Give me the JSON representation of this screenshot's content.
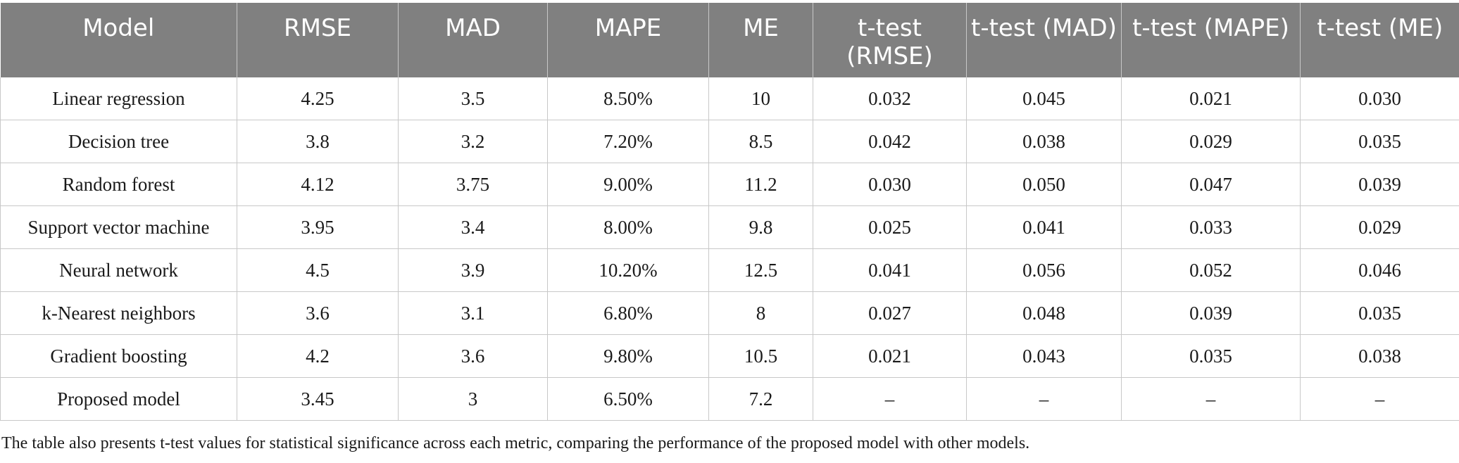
{
  "table": {
    "headers": [
      "Model",
      "RMSE",
      "MAD",
      "MAPE",
      "ME",
      "t-test (RMSE)",
      "t-test (MAD)",
      "t-test (MAPE)",
      "t-test (ME)"
    ],
    "rows": [
      [
        "Linear regression",
        "4.25",
        "3.5",
        "8.50%",
        "10",
        "0.032",
        "0.045",
        "0.021",
        "0.030"
      ],
      [
        "Decision tree",
        "3.8",
        "3.2",
        "7.20%",
        "8.5",
        "0.042",
        "0.038",
        "0.029",
        "0.035"
      ],
      [
        "Random forest",
        "4.12",
        "3.75",
        "9.00%",
        "11.2",
        "0.030",
        "0.050",
        "0.047",
        "0.039"
      ],
      [
        "Support vector machine",
        "3.95",
        "3.4",
        "8.00%",
        "9.8",
        "0.025",
        "0.041",
        "0.033",
        "0.029"
      ],
      [
        "Neural network",
        "4.5",
        "3.9",
        "10.20%",
        "12.5",
        "0.041",
        "0.056",
        "0.052",
        "0.046"
      ],
      [
        "k-Nearest neighbors",
        "3.6",
        "3.1",
        "6.80%",
        "8",
        "0.027",
        "0.048",
        "0.039",
        "0.035"
      ],
      [
        "Gradient boosting",
        "4.2",
        "3.6",
        "9.80%",
        "10.5",
        "0.021",
        "0.043",
        "0.035",
        "0.038"
      ],
      [
        "Proposed model",
        "3.45",
        "3",
        "6.50%",
        "7.2",
        "–",
        "–",
        "–",
        "–"
      ]
    ]
  },
  "footnote": "The table also presents t-test values for statistical significance across each metric, comparing the performance of the proposed model with other models.",
  "colors": {
    "header_bg": "#808080",
    "header_text": "#ffffff",
    "border": "#c8c8c8"
  }
}
